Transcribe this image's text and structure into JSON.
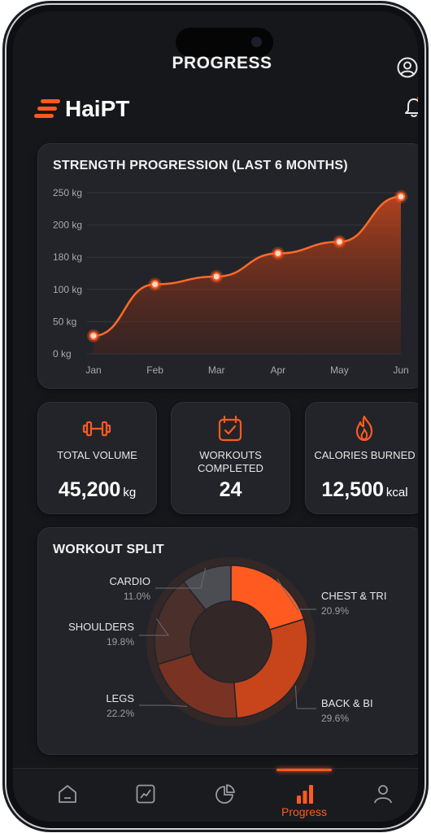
{
  "header": {
    "title": "PROGRESS",
    "brand": "HaiPT"
  },
  "icons": {
    "profile": "user-circle-icon",
    "notifications": "bell-icon",
    "brand_mark": "speed-lines-icon"
  },
  "colors": {
    "accent": "#ff5a1f",
    "background": "#16171b",
    "card": "#222429"
  },
  "strength_card": {
    "title": "STRENGTH PROGRESSION (LAST 6 MONTHS)"
  },
  "chart_data": [
    {
      "type": "area",
      "title": "STRENGTH PROGRESSION (LAST 6 MONTHS)",
      "categories": [
        "Jan",
        "Feb",
        "Mar",
        "Apr",
        "May",
        "Jun"
      ],
      "y_ticks": [
        "250 kg",
        "200 kg",
        "180 kg",
        "100 kg",
        "50 kg",
        "0 kg"
      ],
      "series": [
        {
          "values": [
            28,
            108,
            120,
            156,
            174,
            244
          ]
        }
      ],
      "ylim": [
        0,
        250
      ],
      "grid": true
    },
    {
      "type": "pie",
      "title": "WORKOUT SPLIT",
      "donut": true,
      "slices": [
        {
          "label": "CHEST & TRI",
          "value": 20.9,
          "value_text": "20.9%",
          "color": "#ff5a1f"
        },
        {
          "label": "BACK & BI",
          "value": 29.6,
          "value_text": "29.6%",
          "color": "#c8441a"
        },
        {
          "label": "LEGS",
          "value": 22.2,
          "value_text": "22.2%",
          "color": "#7a3322"
        },
        {
          "label": "SHOULDERS",
          "value": 19.8,
          "value_text": "19.8%",
          "color": "#4a2f2b"
        },
        {
          "label": "CARDIO",
          "value": 11.0,
          "value_text": "11.0%",
          "color": "#4b4d52"
        }
      ]
    }
  ],
  "stats": [
    {
      "label": "TOTAL VOLUME",
      "value": "45,200",
      "unit": "kg",
      "icon": "dumbbell-icon"
    },
    {
      "label": "WORKOUTS COMPLETED",
      "value": "24",
      "unit": "",
      "icon": "calendar-check-icon"
    },
    {
      "label": "CALORIES BURNED",
      "value": "12,500",
      "unit": "kcal",
      "icon": "flame-icon"
    }
  ],
  "split_card": {
    "title": "WORKOUT SPLIT"
  },
  "nav": {
    "active_label": "Progress",
    "items": [
      "home-icon",
      "chart-line-icon",
      "pie-chart-icon",
      "bar-chart-icon",
      "profile-icon"
    ]
  }
}
